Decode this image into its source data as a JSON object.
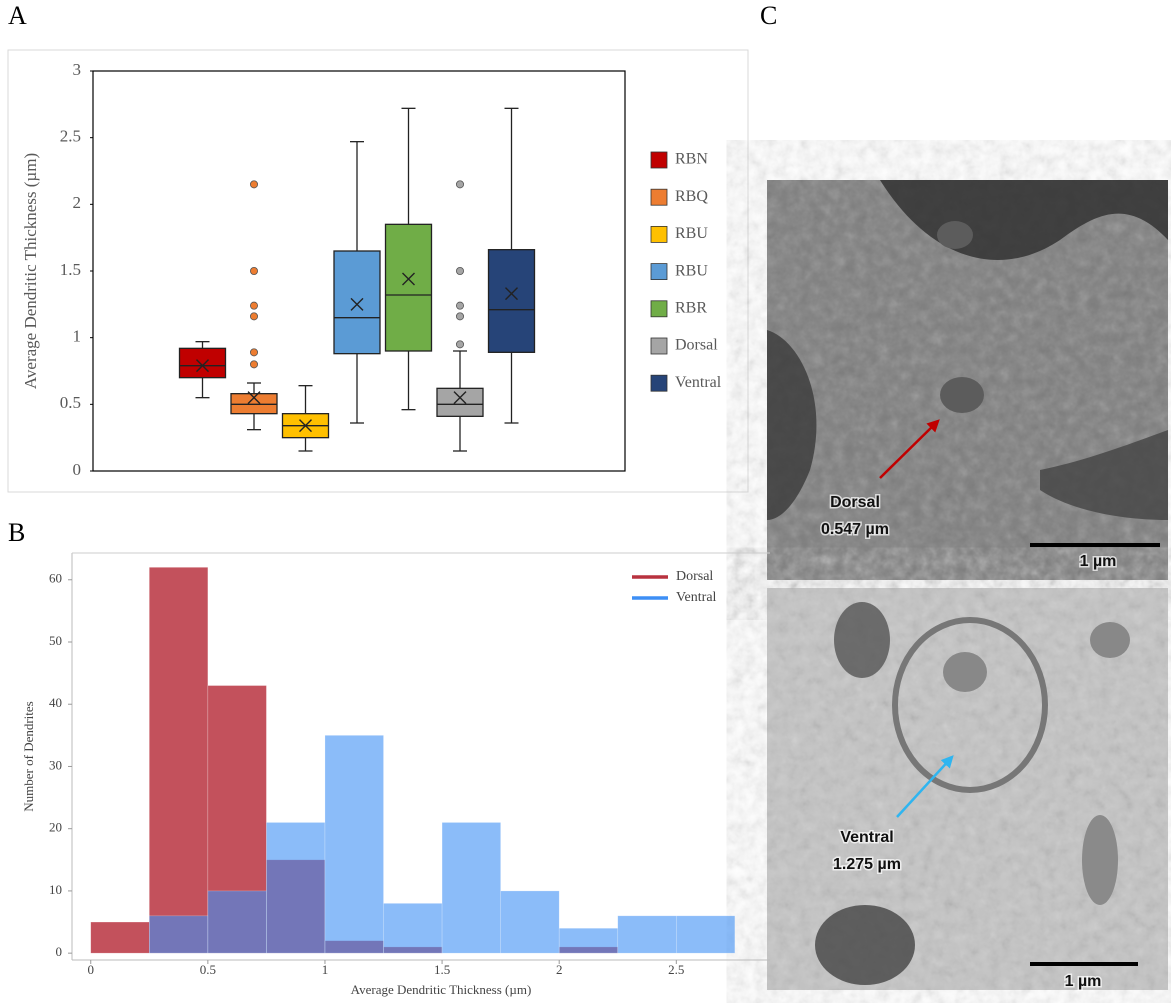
{
  "panel_labels": [
    "A",
    "B",
    "C"
  ],
  "chart_data": [
    {
      "type": "box",
      "y_label": "Average Dendritic Thickness (µm)",
      "ylim": [
        0,
        3
      ],
      "yticks": [
        0,
        0.5,
        1,
        1.5,
        2,
        2.5,
        3
      ],
      "legend": "right",
      "series": [
        {
          "name": "RBN",
          "color": "#c00000",
          "min": 0.55,
          "q1": 0.7,
          "median": 0.79,
          "q3": 0.92,
          "max": 0.97,
          "mean": 0.79,
          "outliers": []
        },
        {
          "name": "RBQ",
          "color": "#ed7d31",
          "min": 0.31,
          "q1": 0.43,
          "median": 0.5,
          "q3": 0.58,
          "max": 0.66,
          "mean": 0.55,
          "outliers": [
            0.8,
            0.89,
            1.16,
            1.24,
            1.5,
            2.15
          ]
        },
        {
          "name": "RBU",
          "color": "#ffc000",
          "min": 0.15,
          "q1": 0.25,
          "median": 0.34,
          "q3": 0.43,
          "max": 0.64,
          "mean": 0.34,
          "outliers": []
        },
        {
          "name": "RBU",
          "color": "#5b9bd5",
          "min": 0.36,
          "q1": 0.88,
          "median": 1.15,
          "q3": 1.65,
          "max": 2.47,
          "mean": 1.25,
          "outliers": []
        },
        {
          "name": "RBR",
          "color": "#70ad47",
          "min": 0.46,
          "q1": 0.9,
          "median": 1.32,
          "q3": 1.85,
          "max": 2.72,
          "mean": 1.44,
          "outliers": []
        },
        {
          "name": "Dorsal",
          "color": "#a5a5a5",
          "min": 0.15,
          "q1": 0.41,
          "median": 0.5,
          "q3": 0.62,
          "max": 0.9,
          "mean": 0.55,
          "outliers": [
            0.95,
            1.16,
            1.24,
            1.5,
            2.15
          ]
        },
        {
          "name": "Ventral",
          "color": "#264478",
          "min": 0.36,
          "q1": 0.89,
          "median": 1.21,
          "q3": 1.66,
          "max": 2.72,
          "mean": 1.33,
          "outliers": []
        }
      ]
    },
    {
      "type": "histogram",
      "x_label": "Average Dendritic Thickness (µm)",
      "y_label": "Number of Dendrites",
      "bins": [
        0,
        0.25,
        0.5,
        0.75,
        1,
        1.25,
        1.5,
        1.75,
        2,
        2.25,
        2.5,
        2.75
      ],
      "xlim": [
        -0.08,
        2.9
      ],
      "xticks": [
        0,
        0.5,
        1,
        1.5,
        2,
        2.5
      ],
      "ylim": [
        -1.1,
        64.3
      ],
      "yticks": [
        0,
        10,
        20,
        30,
        40,
        50,
        60
      ],
      "legend": "upper right",
      "series": [
        {
          "name": "Dorsal",
          "color": "#b8323f",
          "values": [
            5,
            62,
            43,
            15,
            2,
            1,
            0,
            0,
            1,
            0,
            0
          ]
        },
        {
          "name": "Ventral",
          "color": "#3d8ff5",
          "values": [
            0,
            6,
            10,
            21,
            35,
            8,
            21,
            10,
            4,
            6,
            6
          ]
        }
      ]
    }
  ],
  "micrographs": [
    {
      "label": "Dorsal",
      "measurement": "0.547 µm",
      "scale_bar": "1 µm",
      "arrow_color": "#c00000"
    },
    {
      "label": "Ventral",
      "measurement": "1.275 µm",
      "scale_bar": "1 µm",
      "arrow_color": "#2fb5f0"
    }
  ]
}
